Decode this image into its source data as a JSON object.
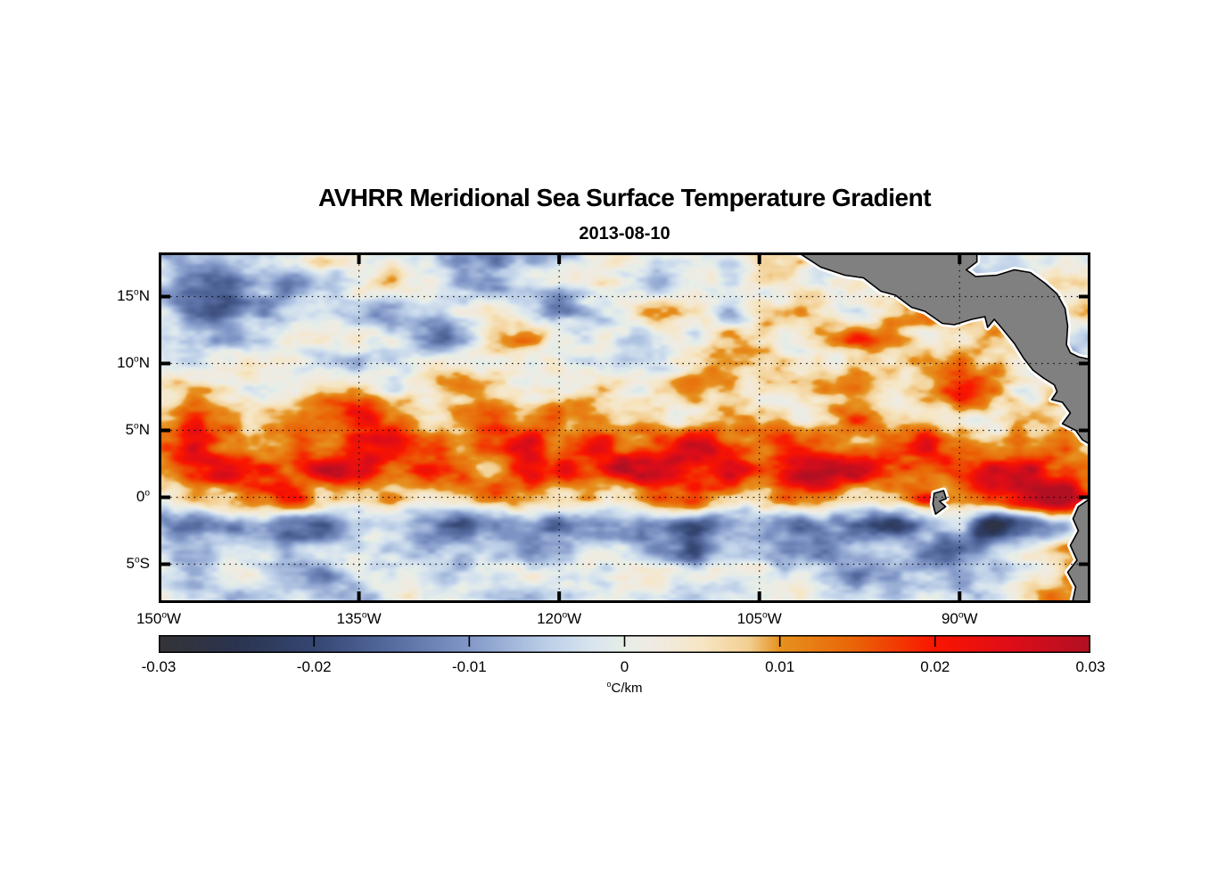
{
  "title": "AVHRR Meridional Sea Surface Temperature Gradient",
  "subtitle": "2013-08-10",
  "colors": {
    "background": "#ffffff",
    "land_fill": "#808080",
    "land_outline": "#000000",
    "coast_halo": "#ffffff",
    "axis": "#000000",
    "grid": "#000000"
  },
  "chart_data": {
    "type": "heatmap",
    "title": "AVHRR Meridional Sea Surface Temperature Gradient",
    "subtitle_date": "2013-08-10",
    "xlabel": "",
    "ylabel": "",
    "grid_on": true,
    "xlim": [
      -150,
      -80.2
    ],
    "ylim": [
      -7.9,
      18.3
    ],
    "x_ticks": [
      {
        "value": -150,
        "deg": "150",
        "hem": "W"
      },
      {
        "value": -135,
        "deg": "135",
        "hem": "W"
      },
      {
        "value": -120,
        "deg": "120",
        "hem": "W"
      },
      {
        "value": -105,
        "deg": "105",
        "hem": "W"
      },
      {
        "value": -90,
        "deg": "90",
        "hem": "W"
      }
    ],
    "y_ticks": [
      {
        "value": 15,
        "deg": "15",
        "hem": "N"
      },
      {
        "value": 10,
        "deg": "10",
        "hem": "N"
      },
      {
        "value": 5,
        "deg": "5",
        "hem": "N"
      },
      {
        "value": 0,
        "deg": "0",
        "hem": ""
      },
      {
        "value": -5,
        "deg": "5",
        "hem": "S"
      }
    ],
    "colorbar": {
      "position": "bottom",
      "ticks": [
        -0.03,
        -0.02,
        -0.01,
        0,
        0.01,
        0.02,
        0.03
      ],
      "labels": [
        "-0.03",
        "-0.02",
        "-0.01",
        "0",
        "0.01",
        "0.02",
        "0.03"
      ],
      "units": "°C/km",
      "units_parts": {
        "sup": "o",
        "rest": "C/km"
      },
      "stops": [
        {
          "v": -0.03,
          "c": "#343438"
        },
        {
          "v": -0.025,
          "c": "#2b344f"
        },
        {
          "v": -0.02,
          "c": "#344672"
        },
        {
          "v": -0.015,
          "c": "#566ba0"
        },
        {
          "v": -0.01,
          "c": "#8298c8"
        },
        {
          "v": -0.005,
          "c": "#bccfe8"
        },
        {
          "v": -0.002,
          "c": "#d9e5ef"
        },
        {
          "v": 0.0,
          "c": "#e7eee7"
        },
        {
          "v": 0.002,
          "c": "#f0ebe2"
        },
        {
          "v": 0.005,
          "c": "#f6e6c4"
        },
        {
          "v": 0.008,
          "c": "#f3cf92"
        },
        {
          "v": 0.01,
          "c": "#e6921f"
        },
        {
          "v": 0.015,
          "c": "#ea6206"
        },
        {
          "v": 0.02,
          "c": "#fa1500"
        },
        {
          "v": 0.025,
          "c": "#de0d18"
        },
        {
          "v": 0.03,
          "c": "#b11023"
        }
      ]
    },
    "grid_field": {
      "comment": "Approximate meridional SST gradient (degC/km) read from the map on a 2.5 deg lon x 2 deg lat grid",
      "lons": [
        -150,
        -147.5,
        -145,
        -142.5,
        -140,
        -137.5,
        -135,
        -132.5,
        -130,
        -127.5,
        -125,
        -122.5,
        -120,
        -117.5,
        -115,
        -112.5,
        -110,
        -107.5,
        -105,
        -102.5,
        -100,
        -97.5,
        -95,
        -92.5,
        -90,
        -87.5,
        -85,
        -82.5,
        -80
      ],
      "lats": [
        18,
        16,
        14,
        12,
        10,
        8,
        6,
        4,
        2,
        0,
        -2,
        -4,
        -6,
        -8
      ],
      "values": [
        [
          -0.002,
          -0.006,
          -0.01,
          -0.008,
          -0.003,
          0.002,
          0.001,
          -0.001,
          -0.004,
          -0.008,
          -0.012,
          -0.006,
          -0.002,
          0.001,
          0.003,
          0.002,
          0.0,
          -0.002,
          0.003,
          0.005,
          0.002,
          0.0,
          0.0,
          -0.006,
          -0.01,
          -0.004,
          0.002,
          0.004,
          0.003
        ],
        [
          -0.004,
          -0.012,
          -0.016,
          -0.01,
          -0.014,
          -0.008,
          -0.002,
          0.004,
          -0.002,
          -0.01,
          -0.014,
          -0.008,
          -0.003,
          0.002,
          -0.002,
          -0.006,
          -0.003,
          0.0,
          0.004,
          0.006,
          0.003,
          0.008,
          0.004,
          -0.004,
          -0.008,
          -0.002,
          0.004,
          0.006,
          0.004
        ],
        [
          -0.003,
          -0.014,
          -0.018,
          -0.012,
          -0.006,
          0.002,
          -0.004,
          -0.012,
          -0.006,
          0.0,
          0.006,
          -0.004,
          -0.01,
          -0.004,
          0.002,
          0.006,
          0.002,
          -0.002,
          0.006,
          0.01,
          0.006,
          0.002,
          0.008,
          0.012,
          0.008,
          0.002,
          -0.004,
          0.002,
          0.004
        ],
        [
          0.002,
          -0.004,
          -0.008,
          -0.002,
          0.004,
          0.006,
          0.002,
          -0.004,
          -0.012,
          -0.008,
          0.004,
          0.01,
          0.004,
          -0.002,
          -0.006,
          -0.002,
          0.002,
          0.006,
          0.003,
          0.0,
          0.008,
          0.014,
          0.01,
          0.004,
          0.006,
          0.01,
          0.006,
          -0.002,
          -0.006
        ],
        [
          0.0,
          -0.002,
          0.002,
          0.005,
          0.003,
          0.0,
          -0.003,
          0.002,
          0.006,
          0.003,
          -0.002,
          0.002,
          0.005,
          0.002,
          -0.002,
          0.0,
          0.004,
          0.007,
          0.004,
          0.002,
          0.006,
          0.009,
          0.006,
          0.01,
          0.016,
          0.012,
          0.004,
          -0.008,
          -0.004
        ],
        [
          0.003,
          0.005,
          0.002,
          -0.002,
          0.003,
          0.007,
          0.004,
          0.0,
          0.005,
          0.008,
          0.004,
          0.0,
          0.003,
          0.006,
          0.002,
          0.004,
          0.008,
          0.005,
          0.002,
          0.006,
          0.01,
          0.006,
          0.003,
          0.008,
          0.018,
          0.01,
          0.002,
          0.008,
          0.014
        ],
        [
          0.01,
          0.016,
          0.012,
          0.006,
          0.01,
          0.014,
          0.018,
          0.012,
          0.006,
          0.012,
          0.016,
          0.01,
          0.014,
          0.01,
          0.006,
          0.003,
          0.008,
          0.012,
          0.008,
          0.004,
          0.01,
          0.014,
          0.008,
          0.004,
          0.002,
          0.006,
          0.01,
          0.006,
          0.002
        ],
        [
          0.018,
          0.024,
          0.014,
          0.008,
          0.016,
          0.012,
          0.02,
          0.026,
          0.018,
          0.01,
          0.018,
          0.024,
          0.016,
          0.022,
          0.014,
          0.02,
          0.026,
          0.018,
          0.012,
          0.02,
          0.016,
          0.01,
          0.016,
          0.022,
          0.012,
          0.006,
          0.012,
          0.018,
          0.008
        ],
        [
          0.014,
          0.02,
          0.026,
          0.018,
          0.01,
          0.022,
          0.028,
          0.016,
          0.024,
          0.018,
          0.012,
          0.026,
          0.022,
          0.014,
          0.026,
          0.03,
          0.022,
          0.026,
          0.018,
          0.028,
          0.03,
          0.024,
          0.016,
          0.01,
          0.018,
          0.026,
          0.03,
          0.02,
          0.012
        ],
        [
          0.006,
          0.01,
          0.008,
          0.014,
          0.018,
          0.008,
          0.004,
          0.012,
          0.006,
          0.01,
          0.016,
          0.008,
          0.004,
          0.01,
          0.006,
          0.012,
          0.018,
          0.01,
          0.006,
          0.014,
          0.01,
          0.006,
          0.012,
          0.02,
          0.008,
          0.016,
          0.03,
          0.03,
          0.018
        ],
        [
          -0.008,
          -0.014,
          -0.008,
          -0.004,
          -0.012,
          -0.016,
          -0.01,
          -0.006,
          -0.014,
          -0.018,
          -0.01,
          -0.006,
          -0.012,
          -0.008,
          -0.004,
          -0.01,
          -0.016,
          -0.012,
          -0.008,
          -0.014,
          -0.01,
          -0.016,
          -0.022,
          -0.012,
          -0.006,
          -0.026,
          -0.018,
          -0.006,
          0.008
        ],
        [
          -0.004,
          -0.008,
          -0.003,
          -0.006,
          -0.01,
          -0.004,
          0.0,
          -0.006,
          -0.01,
          -0.006,
          -0.002,
          -0.008,
          -0.004,
          0.0,
          -0.004,
          -0.008,
          -0.012,
          -0.006,
          -0.002,
          -0.008,
          -0.014,
          -0.008,
          -0.004,
          -0.01,
          -0.016,
          -0.01,
          -0.004,
          0.006,
          0.012
        ],
        [
          -0.002,
          -0.005,
          -0.002,
          0.0,
          -0.004,
          -0.008,
          -0.004,
          0.0,
          -0.003,
          -0.006,
          -0.002,
          0.002,
          -0.002,
          -0.006,
          -0.003,
          0.0,
          -0.004,
          -0.002,
          0.002,
          -0.002,
          -0.006,
          -0.01,
          -0.006,
          -0.002,
          -0.008,
          -0.004,
          0.004,
          0.01,
          0.016
        ],
        [
          0.0,
          -0.003,
          -0.006,
          -0.002,
          0.001,
          -0.002,
          -0.005,
          -0.002,
          0.0,
          0.003,
          -0.002,
          -0.004,
          -0.001,
          0.002,
          -0.001,
          -0.004,
          -0.002,
          0.0,
          0.003,
          0.001,
          -0.002,
          -0.005,
          -0.002,
          0.001,
          -0.003,
          0.0,
          0.005,
          0.008,
          0.004
        ]
      ]
    },
    "land": {
      "names": [
        "central-america",
        "south-america",
        "galapagos-islands"
      ],
      "polygons": [
        [
          [
            -102.4,
            18.5
          ],
          [
            -100.4,
            17.2
          ],
          [
            -98.6,
            16.6
          ],
          [
            -97.2,
            16.4
          ],
          [
            -95.9,
            15.4
          ],
          [
            -94.8,
            15.1
          ],
          [
            -93.6,
            14.2
          ],
          [
            -92.6,
            13.9
          ],
          [
            -91.3,
            13.0
          ],
          [
            -90.4,
            12.9
          ],
          [
            -89.1,
            13.3
          ],
          [
            -88.1,
            13.5
          ],
          [
            -87.9,
            12.7
          ],
          [
            -87.4,
            13.3
          ],
          [
            -86.8,
            12.6
          ],
          [
            -85.9,
            11.5
          ],
          [
            -85.2,
            10.4
          ],
          [
            -84.5,
            9.5
          ],
          [
            -83.7,
            8.9
          ],
          [
            -82.9,
            8.4
          ],
          [
            -82.7,
            7.9
          ],
          [
            -83.1,
            7.3
          ],
          [
            -82.3,
            7.1
          ],
          [
            -81.7,
            6.3
          ],
          [
            -82.3,
            5.5
          ],
          [
            -81.3,
            5.0
          ],
          [
            -80.8,
            4.3
          ],
          [
            -79.8,
            3.7
          ],
          [
            -79.8,
            10.2
          ],
          [
            -81.1,
            10.5
          ],
          [
            -81.7,
            10.8
          ],
          [
            -82.0,
            11.4
          ],
          [
            -81.9,
            12.8
          ],
          [
            -82.1,
            14.1
          ],
          [
            -82.7,
            15.2
          ],
          [
            -83.6,
            16.0
          ],
          [
            -84.7,
            16.8
          ],
          [
            -85.9,
            17.0
          ],
          [
            -87.2,
            16.6
          ],
          [
            -88.8,
            16.5
          ],
          [
            -89.5,
            17.0
          ],
          [
            -88.7,
            17.6
          ],
          [
            -88.7,
            18.5
          ]
        ],
        [
          [
            -79.8,
            0.2
          ],
          [
            -81.1,
            -0.7
          ],
          [
            -81.5,
            -1.6
          ],
          [
            -81.1,
            -2.5
          ],
          [
            -81.7,
            -3.6
          ],
          [
            -81.2,
            -4.7
          ],
          [
            -81.9,
            -5.6
          ],
          [
            -81.3,
            -6.7
          ],
          [
            -81.6,
            -8.1
          ],
          [
            -79.8,
            -8.1
          ]
        ],
        [
          [
            -91.9,
            0.3
          ],
          [
            -91.2,
            0.5
          ],
          [
            -91.0,
            -0.1
          ],
          [
            -91.5,
            -0.3
          ],
          [
            -91.05,
            -0.7
          ],
          [
            -91.8,
            -1.25
          ],
          [
            -92.0,
            -0.5
          ]
        ]
      ]
    },
    "noise": {
      "octaves": [
        {
          "sx": 46,
          "sy": 24,
          "amp": 0.005
        },
        {
          "sx": 20,
          "sy": 11,
          "amp": 0.0038
        },
        {
          "sx": 9,
          "sy": 5,
          "amp": 0.0014
        }
      ]
    }
  }
}
